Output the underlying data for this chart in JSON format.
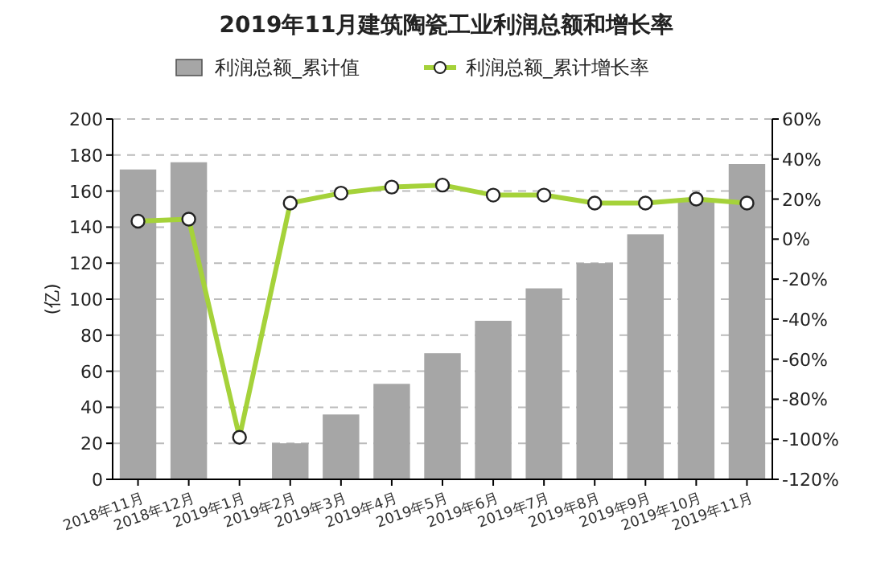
{
  "chart_data": {
    "type": "bar",
    "title": "2019年11月建筑陶瓷工业利润总额和增长率",
    "ylabel": "(亿)",
    "categories": [
      "2018年11月",
      "2018年12月",
      "2019年1月",
      "2019年2月",
      "2019年3月",
      "2019年4月",
      "2019年5月",
      "2019年6月",
      "2019年7月",
      "2019年8月",
      "2019年9月",
      "2019年10月",
      "2019年11月"
    ],
    "series": [
      {
        "name": "利润总额_累计值",
        "color": "#a6a6a6",
        "values": [
          172,
          176,
          null,
          20,
          36,
          53,
          70,
          88,
          106,
          120,
          136,
          154,
          175
        ]
      },
      {
        "name": "利润总额_累计增长率",
        "type": "line",
        "axis": "y2",
        "color": "#a5d23a",
        "marker": "circle",
        "values": [
          9,
          10,
          -99,
          18,
          23,
          26,
          27,
          22,
          22,
          18,
          18,
          20,
          18
        ]
      }
    ],
    "ylim": [
      0,
      200
    ],
    "yticks": [
      0,
      20,
      40,
      60,
      80,
      100,
      120,
      140,
      160,
      180,
      200
    ],
    "y2lim": [
      -120,
      60
    ],
    "y2ticks": [
      {
        "value": -120,
        "label": "-120%"
      },
      {
        "value": -100,
        "label": "-100%"
      },
      {
        "value": -80,
        "label": "-80%"
      },
      {
        "value": -60,
        "label": "-60%"
      },
      {
        "value": -40,
        "label": "-40%"
      },
      {
        "value": -20,
        "label": "-20%"
      },
      {
        "value": 0,
        "label": "0%"
      },
      {
        "value": 20,
        "label": "20%"
      },
      {
        "value": 40,
        "label": "40%"
      },
      {
        "value": 60,
        "label": "60%"
      }
    ],
    "grid": "y",
    "legend": "top"
  }
}
